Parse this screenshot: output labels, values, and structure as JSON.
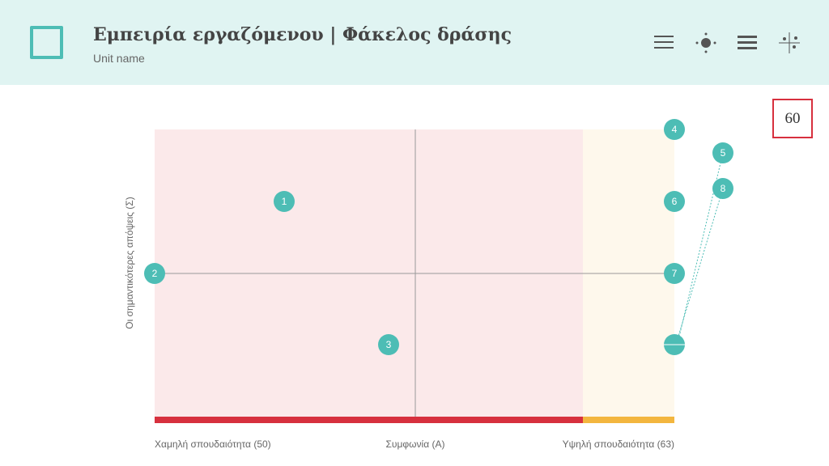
{
  "header": {
    "title": "Εμπειρία εργαζόμενου | Φάκελος δράσης",
    "subtitle": "Unit name"
  },
  "score": "60",
  "plot": {
    "y_label": "Οι σημαντικότερες απόψεις (Σ)",
    "x_labels": [
      "Χαμηλή σπουδαιότητα (50)",
      "Συμφωνία (Α)",
      "Υψηλή σπουδαιότητα (63)"
    ],
    "points": [
      "1",
      "2",
      "3",
      "4",
      "5",
      "6",
      "7",
      "8"
    ]
  }
}
